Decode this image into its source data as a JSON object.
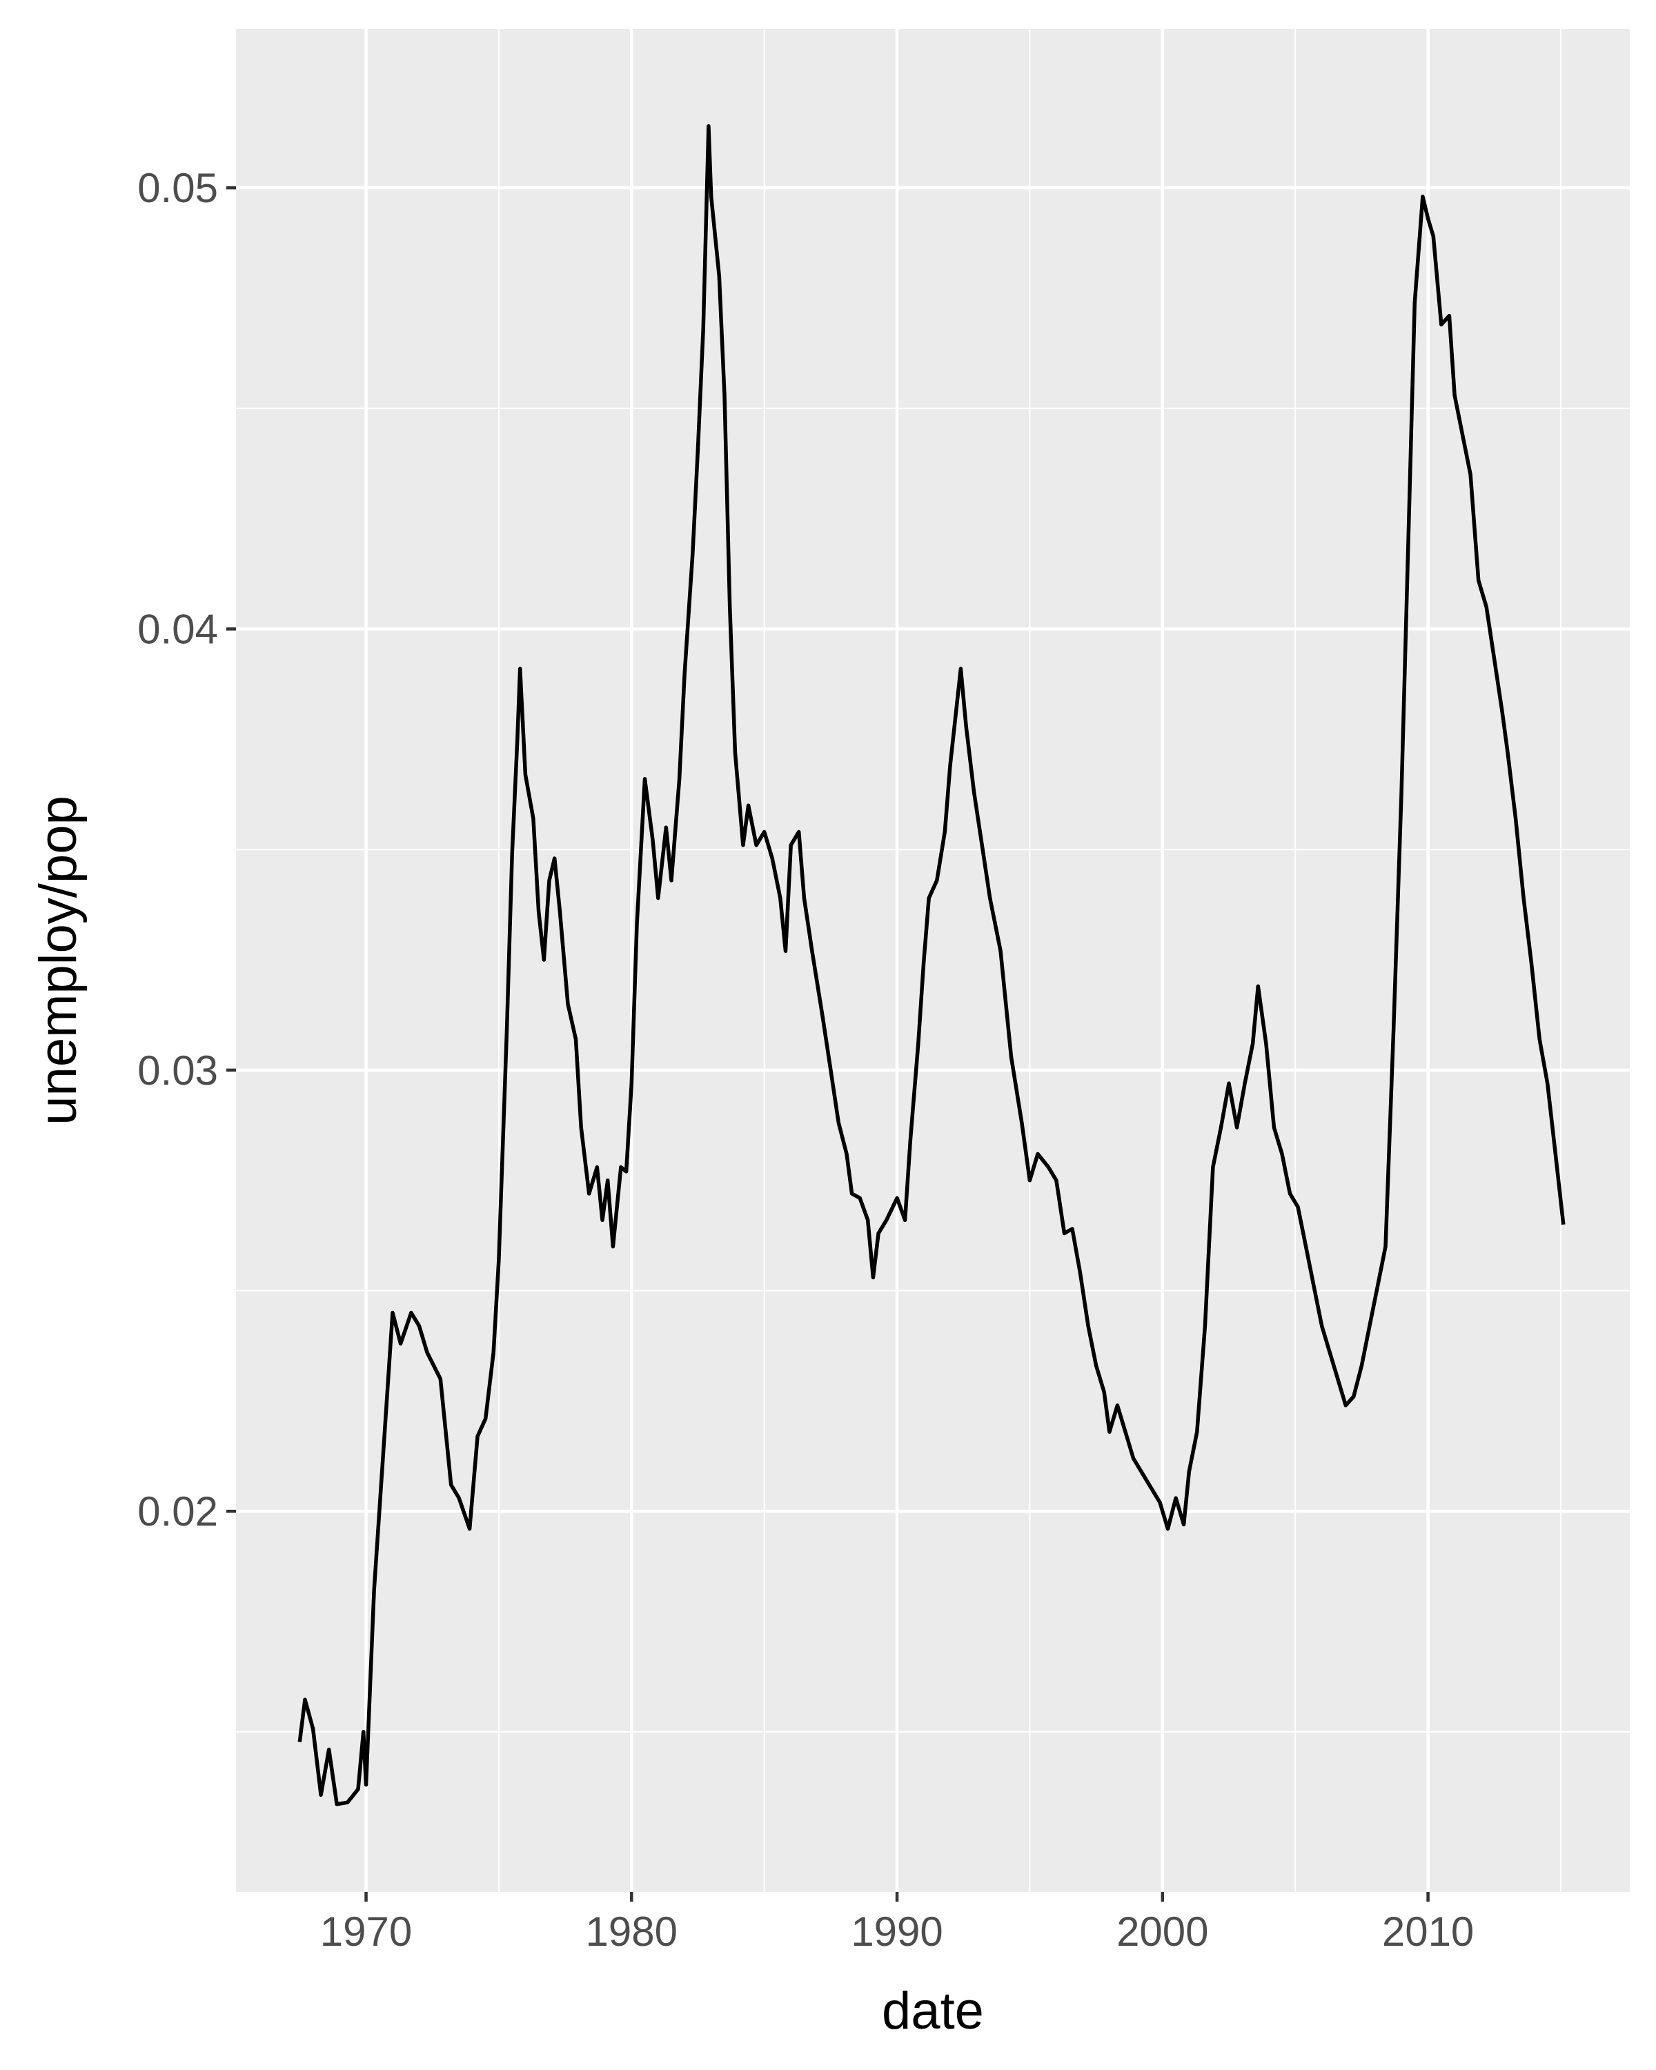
{
  "chart_data": {
    "type": "line",
    "xlabel": "date",
    "ylabel": "unemploy/pop",
    "x": [
      1967.5,
      1967.7,
      1968.0,
      1968.3,
      1968.6,
      1968.9,
      1969.3,
      1969.7,
      1969.9,
      1970.0,
      1970.3,
      1970.7,
      1971.0,
      1971.3,
      1971.7,
      1972.0,
      1972.3,
      1972.8,
      1973.0,
      1973.2,
      1973.5,
      1973.9,
      1974.2,
      1974.5,
      1974.8,
      1975.0,
      1975.3,
      1975.5,
      1975.7,
      1975.8,
      1976.0,
      1976.3,
      1976.5,
      1976.7,
      1976.9,
      1977.1,
      1977.3,
      1977.6,
      1977.9,
      1978.1,
      1978.4,
      1978.7,
      1978.9,
      1979.1,
      1979.3,
      1979.6,
      1979.8,
      1980.0,
      1980.2,
      1980.5,
      1980.8,
      1981.0,
      1981.3,
      1981.5,
      1981.8,
      1982.0,
      1982.3,
      1982.5,
      1982.7,
      1982.9,
      1983.0,
      1983.3,
      1983.5,
      1983.7,
      1983.9,
      1984.2,
      1984.4,
      1984.7,
      1985.0,
      1985.3,
      1985.6,
      1985.8,
      1986.0,
      1986.3,
      1986.5,
      1986.8,
      1987.2,
      1987.5,
      1987.8,
      1988.1,
      1988.3,
      1988.6,
      1988.9,
      1989.1,
      1989.3,
      1989.6,
      1990.0,
      1990.3,
      1990.5,
      1990.8,
      1991.0,
      1991.2,
      1991.5,
      1991.8,
      1992.0,
      1992.4,
      1992.6,
      1992.9,
      1993.2,
      1993.5,
      1993.9,
      1994.3,
      1994.7,
      1995.0,
      1995.3,
      1995.7,
      1996.0,
      1996.3,
      1996.6,
      1996.9,
      1997.2,
      1997.5,
      1997.8,
      1998.0,
      1998.3,
      1998.6,
      1998.9,
      1999.2,
      1999.5,
      1999.9,
      2000.2,
      2000.5,
      2000.8,
      2001.0,
      2001.3,
      2001.6,
      2001.9,
      2002.2,
      2002.5,
      2002.8,
      2003.1,
      2003.4,
      2003.6,
      2003.9,
      2004.2,
      2004.5,
      2004.8,
      2005.1,
      2005.4,
      2005.7,
      2006.0,
      2006.3,
      2006.6,
      2006.9,
      2007.2,
      2007.5,
      2007.8,
      2008.1,
      2008.4,
      2008.7,
      2009.0,
      2009.3,
      2009.5,
      2009.8,
      2010.0,
      2010.2,
      2010.5,
      2010.8,
      2011.0,
      2011.3,
      2011.6,
      2011.9,
      2012.2,
      2012.5,
      2012.8,
      2013.0,
      2013.3,
      2013.6,
      2013.9,
      2014.2,
      2014.5,
      2014.8,
      2015.1
    ],
    "values": [
      0.01477,
      0.01573,
      0.01507,
      0.01357,
      0.0146,
      0.01336,
      0.0134,
      0.0137,
      0.015,
      0.0138,
      0.0182,
      0.0218,
      0.0245,
      0.0238,
      0.0245,
      0.0242,
      0.0236,
      0.023,
      0.0218,
      0.0206,
      0.0203,
      0.0196,
      0.0217,
      0.0221,
      0.0236,
      0.0257,
      0.0309,
      0.0349,
      0.0375,
      0.0391,
      0.0367,
      0.0357,
      0.0336,
      0.0325,
      0.0343,
      0.0348,
      0.0336,
      0.0315,
      0.0307,
      0.0287,
      0.0272,
      0.0278,
      0.0266,
      0.0275,
      0.026,
      0.0278,
      0.0277,
      0.0297,
      0.0333,
      0.0366,
      0.0352,
      0.0339,
      0.0355,
      0.0343,
      0.0366,
      0.039,
      0.0417,
      0.0441,
      0.0468,
      0.0514,
      0.0498,
      0.048,
      0.0453,
      0.0405,
      0.0372,
      0.0351,
      0.036,
      0.0351,
      0.0354,
      0.0348,
      0.0339,
      0.0327,
      0.0351,
      0.0354,
      0.0339,
      0.0327,
      0.0312,
      0.03,
      0.0288,
      0.0281,
      0.0272,
      0.0271,
      0.0266,
      0.0253,
      0.0263,
      0.0266,
      0.0271,
      0.0266,
      0.0284,
      0.0306,
      0.0324,
      0.0339,
      0.0343,
      0.0354,
      0.0369,
      0.0391,
      0.0378,
      0.0363,
      0.0351,
      0.0339,
      0.0327,
      0.0303,
      0.0288,
      0.0275,
      0.0281,
      0.0278,
      0.0275,
      0.0263,
      0.0264,
      0.0254,
      0.0242,
      0.0233,
      0.0227,
      0.0218,
      0.0224,
      0.0218,
      0.0212,
      0.0209,
      0.0206,
      0.0202,
      0.0196,
      0.0203,
      0.0197,
      0.0209,
      0.0218,
      0.0242,
      0.0278,
      0.0287,
      0.0297,
      0.0287,
      0.0297,
      0.0306,
      0.0319,
      0.0306,
      0.0287,
      0.0281,
      0.0272,
      0.0269,
      0.026,
      0.0251,
      0.0242,
      0.0236,
      0.023,
      0.0224,
      0.0226,
      0.0233,
      0.0242,
      0.0251,
      0.026,
      0.0309,
      0.0363,
      0.0429,
      0.0474,
      0.0498,
      0.0493,
      0.0489,
      0.0469,
      0.0471,
      0.0453,
      0.0444,
      0.0435,
      0.0411,
      0.0405,
      0.0393,
      0.0381,
      0.0372,
      0.0357,
      0.0339,
      0.0324,
      0.0307,
      0.0297,
      0.0281,
      0.0265
    ],
    "color": "#000000",
    "xlim": [
      1965.1,
      2017.6
    ],
    "xticks": [
      1970,
      1980,
      1990,
      2000,
      2010
    ],
    "ylim": [
      0.01137,
      0.0536
    ],
    "yticks": [
      0.02,
      0.03,
      0.04,
      0.05
    ],
    "grid": true
  }
}
